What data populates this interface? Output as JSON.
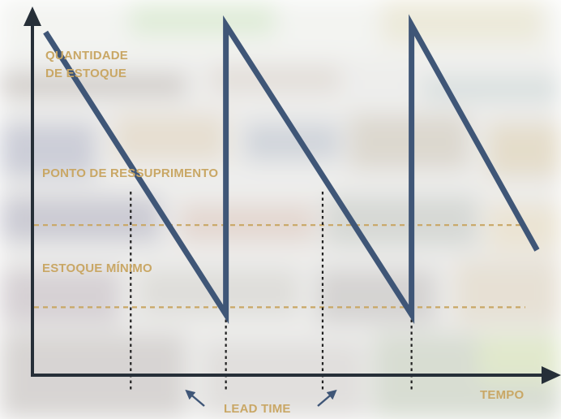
{
  "colors": {
    "axis": "#262f38",
    "stock_line": "#3f5677",
    "label": "#c9a765",
    "dashed_level": "#c9a765",
    "dotted_drop": "#222222",
    "arrow": "#3f5677"
  },
  "labels": {
    "y_axis_line1": "QUANTIDADE",
    "y_axis_line2": "DE ESTOQUE",
    "x_axis": "TEMPO",
    "reorder_point": "PONTO DE RESSUPRIMENTO",
    "minimum_stock": "ESTOQUE MÍNIMO",
    "lead_time": "LEAD TIME"
  },
  "icons": {
    "lead_time_left": "arrow-up-left-icon",
    "lead_time_right": "arrow-up-right-icon",
    "background": "supermarket-shelf-photo"
  },
  "chart_data": {
    "type": "line",
    "title": "",
    "xlabel": "TEMPO",
    "ylabel": "QUANTIDADE DE ESTOQUE",
    "xlim": [
      0,
      10
    ],
    "ylim": [
      0,
      10
    ],
    "series": [
      {
        "name": "",
        "x": [
          0.25,
          3.7,
          3.7,
          7.25,
          7.25,
          9.65
        ],
        "y": [
          9.6,
          1.7,
          9.8,
          1.7,
          9.8,
          3.5
        ]
      }
    ],
    "reference_lines": [
      {
        "label": "PONTO DE RESSUPRIMENTO",
        "y": 4.2
      },
      {
        "label": "ESTOQUE MÍNIMO",
        "y": 1.9
      }
    ],
    "lead_time_drops_x": [
      1.88,
      3.7,
      5.55,
      7.25
    ]
  }
}
